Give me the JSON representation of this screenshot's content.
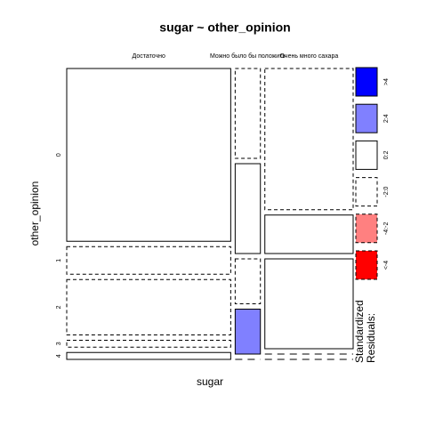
{
  "chart_data": {
    "type": "mosaic",
    "title": "sugar ~ other_opinion",
    "x_label": "sugar",
    "y_label": "other_opinion",
    "categories": [
      "Достаточно",
      "Можно было бы положить",
      "Очень много сахара"
    ],
    "rows": [
      "0",
      "1",
      "2",
      "3",
      "4"
    ],
    "values": [
      [
        25,
        4,
        8,
        1,
        1
      ],
      [
        2,
        2,
        1,
        1,
        0
      ],
      [
        11,
        3,
        7,
        0,
        0
      ]
    ],
    "shades": [
      [
        2,
        3,
        3,
        3,
        2
      ],
      [
        3,
        2,
        3,
        1,
        3
      ],
      [
        3,
        2,
        2,
        3,
        3
      ]
    ],
    "legend": {
      "title": [
        "Standardized",
        "Residuals:"
      ],
      "labels": [
        ">4",
        "2:4",
        "0:2",
        "-2:0",
        "-4:-2",
        "<-4"
      ],
      "colors": [
        "#0000ff",
        "#8080ff",
        "#ffffff",
        "#ffffff",
        "#ff8080",
        "#ff0000"
      ],
      "dashed": [
        false,
        false,
        false,
        true,
        true,
        true
      ]
    }
  }
}
